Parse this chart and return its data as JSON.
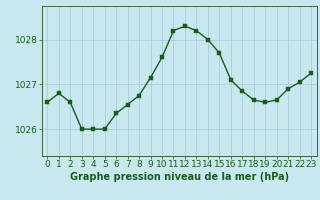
{
  "x": [
    0,
    1,
    2,
    3,
    4,
    5,
    6,
    7,
    8,
    9,
    10,
    11,
    12,
    13,
    14,
    15,
    16,
    17,
    18,
    19,
    20,
    21,
    22,
    23
  ],
  "y": [
    1026.6,
    1026.8,
    1026.6,
    1026.0,
    1026.0,
    1026.0,
    1026.35,
    1026.55,
    1026.75,
    1027.15,
    1027.6,
    1028.2,
    1028.3,
    1028.2,
    1028.0,
    1027.7,
    1027.1,
    1026.85,
    1026.65,
    1026.6,
    1026.65,
    1026.9,
    1027.05,
    1027.25
  ],
  "line_color": "#1a5c1a",
  "marker_color": "#1a5c1a",
  "bg_color": "#c8e8f0",
  "grid_color": "#a8c8d8",
  "axis_color": "#406040",
  "xlabel": "Graphe pression niveau de la mer (hPa)",
  "xlabel_color": "#1a5c1a",
  "xtick_labels": [
    "0",
    "1",
    "2",
    "3",
    "4",
    "5",
    "6",
    "7",
    "8",
    "9",
    "10",
    "11",
    "12",
    "13",
    "14",
    "15",
    "16",
    "17",
    "18",
    "19",
    "20",
    "21",
    "22",
    "23"
  ],
  "ytick_values": [
    1026,
    1027,
    1028
  ],
  "ylim": [
    1025.4,
    1028.75
  ],
  "xlim": [
    -0.5,
    23.5
  ],
  "tick_color": "#1a5c1a",
  "font_size_xlabel": 7,
  "font_size_ticks": 6.5,
  "marker_size": 2.5,
  "line_width": 1.0
}
